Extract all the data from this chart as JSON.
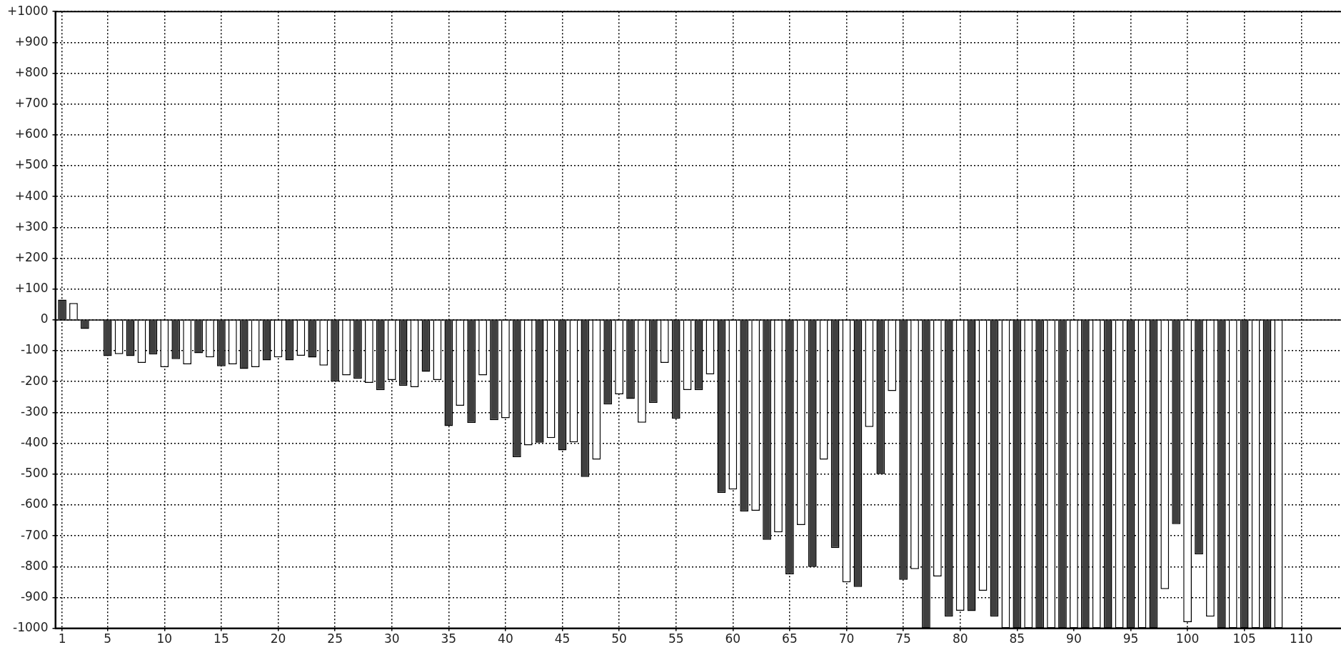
{
  "chart_data": {
    "type": "bar",
    "x": [
      1,
      2,
      3,
      4,
      5,
      6,
      7,
      8,
      9,
      10,
      11,
      12,
      13,
      14,
      15,
      16,
      17,
      18,
      19,
      20,
      21,
      22,
      23,
      24,
      25,
      26,
      27,
      28,
      29,
      30,
      31,
      32,
      33,
      34,
      35,
      36,
      37,
      38,
      39,
      40,
      41,
      42,
      43,
      44,
      45,
      46,
      47,
      48,
      49,
      50,
      51,
      52,
      53,
      54,
      55,
      56,
      57,
      58,
      59,
      60,
      61,
      62,
      63,
      64,
      65,
      66,
      67,
      68,
      69,
      70,
      71,
      72,
      73,
      74,
      75,
      76,
      77,
      78,
      79,
      80,
      81,
      82,
      83,
      84,
      85,
      86,
      87,
      88,
      89,
      90,
      91,
      92,
      93,
      94,
      95,
      96,
      97,
      98,
      99,
      100,
      101,
      102,
      103,
      104,
      105,
      106,
      107,
      108
    ],
    "values": [
      66,
      55,
      -29,
      null,
      -117,
      -111,
      -117,
      -139,
      -112,
      -153,
      -127,
      -144,
      -108,
      -121,
      -150,
      -144,
      -159,
      -153,
      -131,
      -121,
      -131,
      -116,
      -122,
      -148,
      -200,
      -180,
      -191,
      -204,
      -228,
      -195,
      -214,
      -218,
      -168,
      -195,
      -344,
      -278,
      -334,
      -180,
      -325,
      -319,
      -445,
      -407,
      -398,
      -383,
      -423,
      -397,
      -509,
      -453,
      -274,
      -241,
      -256,
      -333,
      -269,
      -139,
      -320,
      -227,
      -228,
      -176,
      -561,
      -550,
      -621,
      -619,
      -713,
      -689,
      -825,
      -665,
      -801,
      -453,
      -740,
      -851,
      -866,
      -347,
      -500,
      -231,
      -843,
      -808,
      -1000,
      -832,
      -962,
      -943,
      -944,
      -878,
      -962,
      -1000,
      -1000,
      -1000,
      -1000,
      -1000,
      -1000,
      -1000,
      -1000,
      -1000,
      -1000,
      -1000,
      -1000,
      -1000,
      -1000,
      -873,
      -662,
      -980,
      -760,
      -962,
      -1000,
      -1000,
      -1000,
      -1000,
      -1000,
      -1000
    ],
    "colors": [
      "#404040",
      "#ffffff",
      "#404040",
      "#ffffff",
      "#404040",
      "#ffffff",
      "#404040",
      "#ffffff",
      "#404040",
      "#ffffff",
      "#404040",
      "#ffffff",
      "#404040",
      "#ffffff",
      "#404040",
      "#ffffff",
      "#404040",
      "#ffffff",
      "#404040",
      "#ffffff",
      "#404040",
      "#ffffff",
      "#404040",
      "#ffffff",
      "#404040",
      "#ffffff",
      "#404040",
      "#ffffff",
      "#404040",
      "#ffffff",
      "#404040",
      "#ffffff",
      "#404040",
      "#ffffff",
      "#404040",
      "#ffffff",
      "#404040",
      "#ffffff",
      "#404040",
      "#ffffff",
      "#404040",
      "#ffffff",
      "#404040",
      "#ffffff",
      "#404040",
      "#ffffff",
      "#404040",
      "#ffffff",
      "#404040",
      "#ffffff",
      "#404040",
      "#ffffff",
      "#404040",
      "#ffffff",
      "#404040",
      "#ffffff",
      "#404040",
      "#ffffff",
      "#404040",
      "#ffffff",
      "#404040",
      "#ffffff",
      "#404040",
      "#ffffff",
      "#404040",
      "#ffffff",
      "#404040",
      "#ffffff",
      "#404040",
      "#ffffff",
      "#404040",
      "#ffffff",
      "#404040",
      "#ffffff",
      "#404040",
      "#ffffff",
      "#404040",
      "#ffffff",
      "#404040",
      "#ffffff",
      "#404040",
      "#ffffff",
      "#404040",
      "#ffffff",
      "#404040",
      "#ffffff",
      "#404040",
      "#ffffff",
      "#404040",
      "#ffffff",
      "#404040",
      "#ffffff",
      "#404040",
      "#ffffff",
      "#404040",
      "#ffffff",
      "#404040",
      "#ffffff",
      "#404040",
      "#ffffff",
      "#404040",
      "#ffffff",
      "#404040",
      "#ffffff",
      "#404040",
      "#ffffff",
      "#404040",
      "#ffffff"
    ],
    "xlim": [
      0.4,
      113.5
    ],
    "xticks": [
      1,
      5,
      10,
      15,
      20,
      25,
      30,
      35,
      40,
      45,
      50,
      55,
      60,
      65,
      70,
      75,
      80,
      85,
      90,
      95,
      100,
      105,
      110
    ],
    "ylim": [
      -1000,
      1000
    ],
    "yticks": [
      {
        "value": -1000,
        "label": "-1000"
      },
      {
        "value": -900,
        "label": "-900"
      },
      {
        "value": -800,
        "label": "-800"
      },
      {
        "value": -700,
        "label": "-700"
      },
      {
        "value": -600,
        "label": "-600"
      },
      {
        "value": -500,
        "label": "-500"
      },
      {
        "value": -400,
        "label": "-400"
      },
      {
        "value": -300,
        "label": "-300"
      },
      {
        "value": -200,
        "label": "-200"
      },
      {
        "value": -100,
        "label": "-100"
      },
      0,
      {
        "value": 100,
        "label": "+100"
      },
      {
        "value": 200,
        "label": "+200"
      },
      {
        "value": 300,
        "label": "+300"
      },
      {
        "value": 400,
        "label": "+400"
      },
      {
        "value": 500,
        "label": "+500"
      },
      {
        "value": 600,
        "label": "+600"
      },
      {
        "value": 700,
        "label": "+700"
      },
      {
        "value": 800,
        "label": "+800"
      },
      {
        "value": 900,
        "label": "+900"
      },
      {
        "value": 1000,
        "label": "+1000"
      }
    ],
    "grid": true
  }
}
